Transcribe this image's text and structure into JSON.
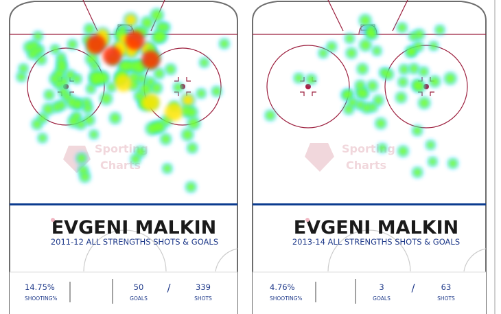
{
  "panels": [
    {
      "player": "EVGENI MALKIN",
      "subtitle": "2011-12  ALL STRENGTHS  SHOTS & GOALS",
      "stats": {
        "shooting_pct": "14.75%",
        "shooting_label": "SHOOTING%",
        "goals": "50",
        "goals_label": "GOALS",
        "separator": "/",
        "shots": "339",
        "shots_label": "SHOTS"
      },
      "watermark": [
        "Sporting",
        "Charts"
      ]
    },
    {
      "player": "EVGENI MALKIN",
      "subtitle": "2013-14  ALL STRENGTHS  SHOTS & GOALS",
      "stats": {
        "shooting_pct": "4.76%",
        "shooting_label": "SHOOTING%",
        "goals": "3",
        "goals_label": "GOALS",
        "separator": "/",
        "shots": "63",
        "shots_label": "SHOTS"
      },
      "watermark": [
        "Sporting",
        "Charts"
      ]
    }
  ],
  "colors": {
    "rink_line": "#9b1d3c",
    "board_line": "#6d6d6d",
    "blue_line": "#0b3b8f",
    "name_text": "#1a1a1a",
    "subtitle_text": "#1f3a8a",
    "stats_text": "#1f3a8a",
    "watermark": "#e6b8c0",
    "heat_low": "#00d6ff",
    "heat_mid": "#7dff2a",
    "heat_high": "#ffe600",
    "heat_top": "#ff2a00"
  },
  "chart_data": [
    {
      "type": "heatmap",
      "title": "EVGENI MALKIN",
      "subtitle": "2011-12  ALL STRENGTHS  SHOTS & GOALS",
      "shots": 339,
      "goals": 50,
      "shooting_pct": 14.75,
      "hotspots": [
        {
          "x": 0.38,
          "y": 0.2,
          "v": 1.0
        },
        {
          "x": 0.55,
          "y": 0.18,
          "v": 1.0
        },
        {
          "x": 0.45,
          "y": 0.26,
          "v": 0.95
        },
        {
          "x": 0.62,
          "y": 0.28,
          "v": 0.9
        },
        {
          "x": 0.72,
          "y": 0.55,
          "v": 0.85
        },
        {
          "x": 0.32,
          "y": 0.38,
          "v": 0.7
        },
        {
          "x": 0.5,
          "y": 0.4,
          "v": 0.75
        },
        {
          "x": 0.62,
          "y": 0.5,
          "v": 0.8
        },
        {
          "x": 0.2,
          "y": 0.5,
          "v": 0.55
        },
        {
          "x": 0.8,
          "y": 0.4,
          "v": 0.6
        },
        {
          "x": 0.35,
          "y": 0.55,
          "v": 0.5
        },
        {
          "x": 0.15,
          "y": 0.28,
          "v": 0.5
        }
      ]
    },
    {
      "type": "heatmap",
      "title": "EVGENI MALKIN",
      "subtitle": "2013-14  ALL STRENGTHS  SHOTS & GOALS",
      "shots": 63,
      "goals": 3,
      "shooting_pct": 4.76,
      "hotspots": [
        {
          "x": 0.55,
          "y": 0.2,
          "v": 0.55
        },
        {
          "x": 0.7,
          "y": 0.45,
          "v": 0.55
        },
        {
          "x": 0.6,
          "y": 0.35,
          "v": 0.5
        },
        {
          "x": 0.3,
          "y": 0.3,
          "v": 0.45
        },
        {
          "x": 0.75,
          "y": 0.25,
          "v": 0.45
        },
        {
          "x": 0.45,
          "y": 0.45,
          "v": 0.45
        }
      ]
    }
  ]
}
